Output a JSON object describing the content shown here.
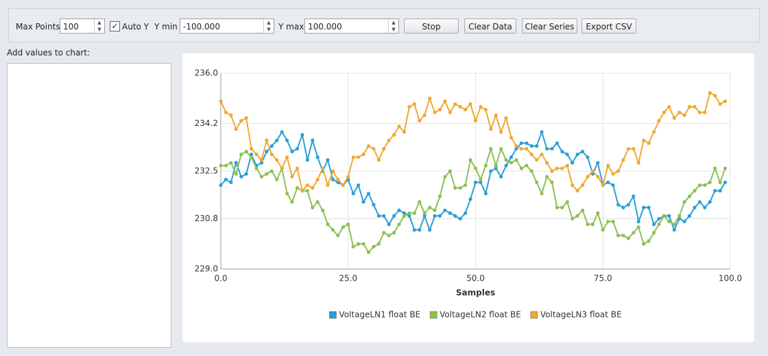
{
  "toolbar": {
    "max_points_label": "Max Points",
    "max_points": "100",
    "auto_y_label": "Auto Y",
    "auto_y": true,
    "ymin_label": "Y min",
    "ymin": "-100.000",
    "ymax_label": "Y max",
    "ymax": "100.000",
    "buttons": [
      "Stop",
      "Clear Data",
      "Clear Series",
      "Export CSV"
    ]
  },
  "input_panel": {
    "label": "Add values to chart:"
  },
  "chart_data": {
    "type": "line",
    "xlabel": "Samples",
    "grid": true,
    "legend": "bottom",
    "x": [
      0,
      1,
      2,
      3,
      4,
      5,
      6,
      7,
      8,
      9,
      10,
      11,
      12,
      13,
      14,
      15,
      16,
      17,
      18,
      19,
      20,
      21,
      22,
      23,
      24,
      25,
      26,
      27,
      28,
      29,
      30,
      31,
      32,
      33,
      34,
      35,
      36,
      37,
      38,
      39,
      40,
      41,
      42,
      43,
      44,
      45,
      46,
      47,
      48,
      49,
      50,
      51,
      52,
      53,
      54,
      55,
      56,
      57,
      58,
      59,
      60,
      61,
      62,
      63,
      64,
      65,
      66,
      67,
      68,
      69,
      70,
      71,
      72,
      73,
      74,
      75,
      76,
      77,
      78,
      79,
      80,
      81,
      82,
      83,
      84,
      85,
      86,
      87,
      88,
      89,
      90,
      91,
      92,
      93,
      94,
      95,
      96,
      97,
      98,
      99
    ],
    "xlim": [
      0,
      100
    ],
    "xticks": [
      {
        "value": 0,
        "label": "0.0"
      },
      {
        "value": 25,
        "label": "25.0"
      },
      {
        "value": 50,
        "label": "50.0"
      },
      {
        "value": 75,
        "label": "75.0"
      },
      {
        "value": 100,
        "label": "100.0"
      }
    ],
    "ylim": [
      229,
      236
    ],
    "yticks": [
      {
        "value": 229,
        "label": "229.0"
      },
      {
        "value": 230.8,
        "label": "230.8"
      },
      {
        "value": 232.5,
        "label": "232.5"
      },
      {
        "value": 234.2,
        "label": "234.2"
      },
      {
        "value": 236,
        "label": "236.0"
      }
    ],
    "series": [
      {
        "name": "VoltageLN1 float BE",
        "color": "#2a9fd6",
        "values": [
          232.0,
          232.2,
          232.1,
          232.8,
          232.3,
          232.4,
          233.1,
          232.7,
          232.8,
          233.2,
          233.4,
          233.6,
          233.9,
          233.6,
          233.2,
          233.3,
          233.8,
          232.9,
          233.6,
          233.0,
          232.5,
          232.9,
          232.2,
          232.1,
          232.0,
          232.2,
          231.7,
          232.0,
          231.4,
          231.7,
          231.3,
          230.9,
          230.9,
          230.6,
          230.9,
          231.1,
          231.0,
          230.9,
          230.4,
          230.4,
          230.9,
          230.4,
          230.9,
          230.9,
          231.1,
          231.0,
          230.9,
          230.8,
          231.0,
          231.5,
          232.1,
          232.1,
          231.7,
          232.5,
          232.6,
          232.3,
          232.7,
          233.0,
          233.3,
          233.5,
          233.5,
          233.4,
          233.4,
          233.9,
          233.3,
          233.3,
          233.5,
          233.2,
          233.1,
          232.8,
          233.1,
          233.2,
          233.0,
          232.4,
          232.8,
          232.0,
          232.1,
          232.0,
          231.3,
          231.2,
          231.3,
          231.6,
          230.7,
          231.2,
          231.2,
          230.6,
          230.8,
          230.9,
          230.9,
          230.4,
          230.8,
          230.7,
          230.9,
          231.2,
          231.4,
          231.2,
          231.4,
          231.8,
          231.8,
          232.1
        ]
      },
      {
        "name": "VoltageLN2 float BE",
        "color": "#8cc152",
        "values": [
          232.7,
          232.7,
          232.8,
          232.4,
          233.1,
          233.2,
          233.0,
          232.6,
          232.3,
          232.4,
          232.5,
          232.2,
          232.6,
          231.7,
          231.4,
          231.9,
          231.8,
          231.8,
          231.2,
          231.4,
          231.1,
          230.6,
          230.4,
          230.2,
          230.5,
          230.6,
          229.8,
          229.9,
          229.9,
          229.6,
          229.8,
          229.9,
          230.3,
          230.2,
          230.3,
          230.6,
          230.9,
          231.0,
          231.0,
          231.4,
          231.0,
          231.2,
          231.1,
          231.6,
          232.3,
          232.5,
          231.9,
          231.9,
          232.0,
          232.9,
          232.6,
          232.2,
          232.7,
          233.3,
          232.7,
          233.3,
          232.9,
          232.8,
          232.9,
          232.6,
          232.7,
          232.5,
          232.1,
          231.7,
          232.3,
          232.1,
          231.2,
          231.2,
          231.4,
          230.8,
          230.9,
          231.1,
          230.6,
          230.6,
          231.0,
          230.4,
          230.7,
          230.7,
          230.2,
          230.2,
          230.1,
          230.3,
          230.5,
          229.9,
          230.0,
          230.3,
          230.6,
          230.9,
          230.7,
          230.6,
          230.9,
          231.4,
          231.6,
          231.8,
          232.0,
          232.0,
          232.1,
          232.6,
          232.1,
          232.6
        ]
      },
      {
        "name": "VoltageLN3 float BE",
        "color": "#f0a830",
        "values": [
          235.0,
          234.6,
          234.5,
          234.0,
          234.3,
          234.4,
          233.3,
          233.1,
          232.9,
          233.6,
          233.1,
          232.9,
          232.6,
          233.0,
          232.3,
          232.6,
          231.8,
          232.0,
          231.9,
          232.2,
          232.6,
          232.0,
          232.5,
          232.2,
          232.0,
          232.3,
          233.0,
          233.0,
          233.1,
          233.4,
          233.3,
          232.9,
          233.3,
          233.6,
          233.8,
          234.1,
          233.9,
          234.8,
          234.9,
          234.3,
          234.5,
          235.1,
          234.6,
          234.7,
          235.0,
          234.6,
          234.9,
          234.8,
          234.7,
          234.9,
          234.3,
          234.8,
          234.7,
          234.0,
          234.5,
          233.9,
          234.4,
          233.7,
          233.4,
          233.3,
          233.3,
          233.1,
          232.9,
          233.1,
          232.8,
          232.5,
          232.6,
          232.6,
          232.7,
          232.0,
          231.8,
          232.0,
          232.3,
          232.5,
          232.3,
          232.0,
          232.7,
          232.4,
          232.5,
          232.9,
          233.3,
          233.3,
          232.8,
          233.6,
          233.5,
          233.9,
          234.3,
          234.6,
          234.8,
          234.4,
          234.6,
          234.5,
          234.8,
          234.8,
          234.6,
          234.6,
          235.3,
          235.2,
          234.9,
          235.0
        ]
      }
    ]
  }
}
